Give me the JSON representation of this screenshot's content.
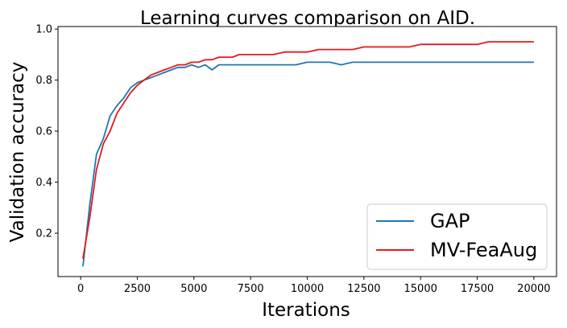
{
  "chart_data": {
    "type": "line",
    "title": "Learning curves comparison on AID.",
    "xlabel": "Iterations",
    "ylabel": "Validation accuracy",
    "xlim": [
      -1000,
      21000
    ],
    "ylim": [
      0.03,
      1.01
    ],
    "xticks": [
      0,
      2500,
      5000,
      7500,
      10000,
      12500,
      15000,
      17500,
      20000
    ],
    "yticks": [
      0.2,
      0.4,
      0.6,
      0.8,
      1.0
    ],
    "ytick_labels": [
      "0.2",
      "0.4",
      "0.6",
      "0.8",
      "1.0"
    ],
    "grid": false,
    "legend_position": "bottom-right",
    "x": [
      100,
      400,
      700,
      1000,
      1300,
      1600,
      1900,
      2200,
      2500,
      2800,
      3100,
      3400,
      3700,
      4000,
      4300,
      4600,
      4900,
      5200,
      5500,
      5800,
      6100,
      6400,
      6700,
      7000,
      7500,
      8000,
      8500,
      9000,
      9500,
      10000,
      10500,
      11000,
      11500,
      12000,
      12500,
      13000,
      13500,
      14000,
      14500,
      15000,
      15500,
      16000,
      16500,
      17000,
      17500,
      18000,
      18500,
      19000,
      19500,
      20000
    ],
    "series": [
      {
        "name": "GAP",
        "color": "#1f77b4",
        "values": [
          0.07,
          0.31,
          0.51,
          0.57,
          0.66,
          0.7,
          0.73,
          0.77,
          0.79,
          0.8,
          0.81,
          0.82,
          0.83,
          0.84,
          0.85,
          0.85,
          0.86,
          0.85,
          0.86,
          0.84,
          0.86,
          0.86,
          0.86,
          0.86,
          0.86,
          0.86,
          0.86,
          0.86,
          0.86,
          0.87,
          0.87,
          0.87,
          0.86,
          0.87,
          0.87,
          0.87,
          0.87,
          0.87,
          0.87,
          0.87,
          0.87,
          0.87,
          0.87,
          0.87,
          0.87,
          0.87,
          0.87,
          0.87,
          0.87,
          0.87
        ]
      },
      {
        "name": "MV-FeaAug",
        "color": "#e31a1c",
        "values": [
          0.1,
          0.26,
          0.45,
          0.55,
          0.6,
          0.67,
          0.71,
          0.75,
          0.78,
          0.8,
          0.82,
          0.83,
          0.84,
          0.85,
          0.86,
          0.86,
          0.87,
          0.87,
          0.88,
          0.88,
          0.89,
          0.89,
          0.89,
          0.9,
          0.9,
          0.9,
          0.9,
          0.91,
          0.91,
          0.91,
          0.92,
          0.92,
          0.92,
          0.92,
          0.93,
          0.93,
          0.93,
          0.93,
          0.93,
          0.94,
          0.94,
          0.94,
          0.94,
          0.94,
          0.94,
          0.95,
          0.95,
          0.95,
          0.95,
          0.95
        ]
      }
    ]
  }
}
